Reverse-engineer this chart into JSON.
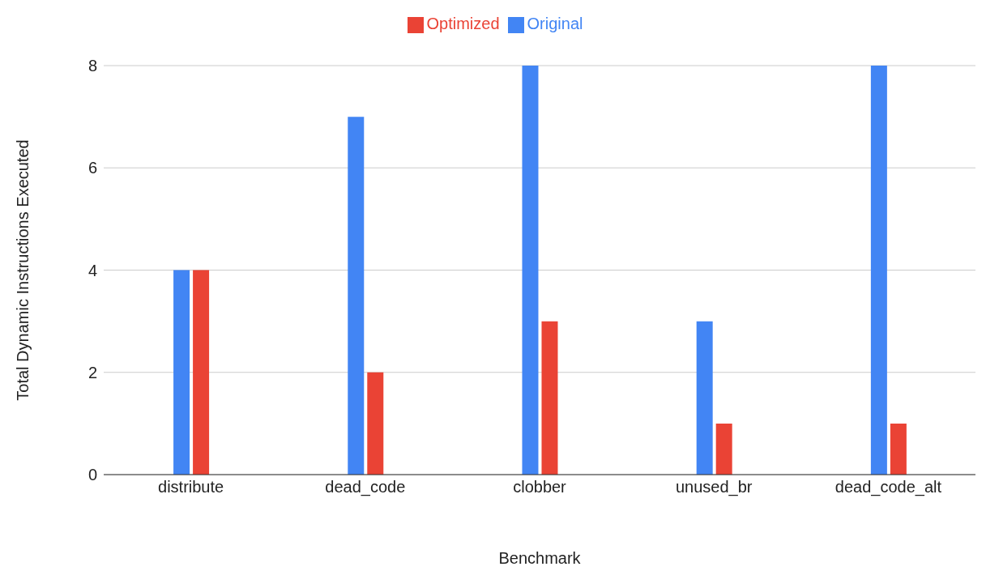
{
  "chart_data": {
    "type": "bar",
    "xlabel": "Benchmark",
    "ylabel": "Total Dynamic Instructions Executed",
    "categories": [
      "distribute",
      "dead_code",
      "clobber",
      "unused_br",
      "dead_code_alt"
    ],
    "series": [
      {
        "name": "Original",
        "color": "#4285f4",
        "values": [
          4,
          7,
          8,
          3,
          8
        ]
      },
      {
        "name": "Optimized",
        "color": "#ea4335",
        "values": [
          4,
          2,
          3,
          1,
          1
        ]
      }
    ],
    "ylim": [
      0,
      8
    ],
    "yticks": [
      0,
      2,
      4,
      6,
      8
    ],
    "grid": "y",
    "legend": "top"
  }
}
